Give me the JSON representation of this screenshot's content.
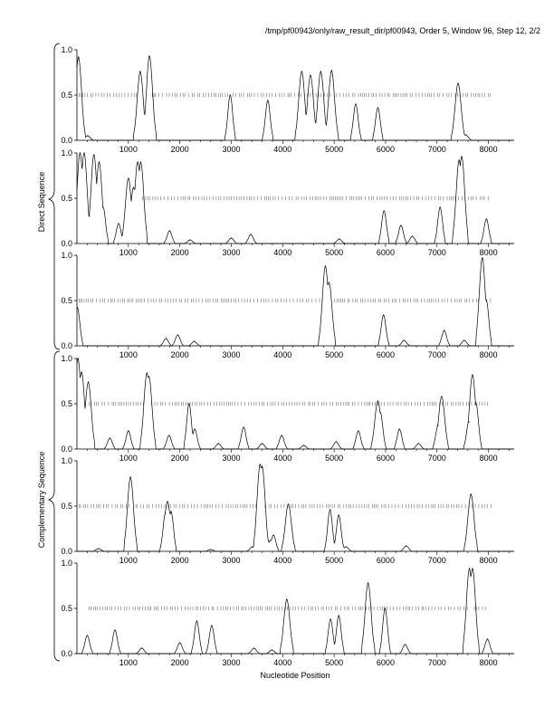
{
  "figure": {
    "title": "/tmp/pf00943/only/raw_result_dir/pf00943, Order 5, Window 96, Step 12, 2/2",
    "xlabel": "Nucleotide Position",
    "group_labels": [
      "Direct Sequence",
      "Complementary Sequence"
    ]
  },
  "colors": {
    "line": "#000000",
    "marker": "#555555",
    "axis": "#000000",
    "background": "#ffffff"
  },
  "chart_data": [
    {
      "type": "line",
      "panel": 1,
      "group": "Direct Sequence",
      "xlim": [
        0,
        8500
      ],
      "ylim": [
        0,
        1
      ],
      "x_ticks": [
        1000,
        2000,
        3000,
        4000,
        5000,
        6000,
        7000,
        8000
      ],
      "y_ticks": [
        "0.0",
        "0.5",
        "1.0"
      ],
      "grid": false,
      "peaks": [
        [
          30,
          0.92
        ],
        [
          210,
          0.05
        ],
        [
          1230,
          0.76
        ],
        [
          1410,
          0.93
        ],
        [
          2980,
          0.5
        ],
        [
          3710,
          0.44
        ],
        [
          4370,
          0.76
        ],
        [
          4540,
          0.72
        ],
        [
          4740,
          0.76
        ],
        [
          4950,
          0.77
        ],
        [
          5420,
          0.4
        ],
        [
          5850,
          0.36
        ],
        [
          7410,
          0.63
        ],
        [
          7560,
          0.06
        ]
      ],
      "markers_at_half": {
        "start": 40,
        "end": 8050,
        "gaps": [
          [
            1200,
            1450
          ],
          [
            2950,
            3000
          ]
        ]
      }
    },
    {
      "type": "line",
      "panel": 2,
      "group": "Direct Sequence",
      "xlim": [
        0,
        8500
      ],
      "ylim": [
        0,
        1
      ],
      "x_ticks": [
        1000,
        2000,
        3000,
        4000,
        5000,
        6000,
        7000,
        8000
      ],
      "y_ticks": [
        "0.0",
        "0.5",
        "1.0"
      ],
      "grid": false,
      "peaks": [
        [
          60,
          1.0
        ],
        [
          140,
          1.0
        ],
        [
          330,
          0.98
        ],
        [
          430,
          0.9
        ],
        [
          510,
          0.4
        ],
        [
          810,
          0.22
        ],
        [
          1000,
          0.72
        ],
        [
          1100,
          0.62
        ],
        [
          1180,
          0.9
        ],
        [
          1240,
          0.9
        ],
        [
          1800,
          0.14
        ],
        [
          2200,
          0.04
        ],
        [
          3000,
          0.06
        ],
        [
          3380,
          0.1
        ],
        [
          5100,
          0.05
        ],
        [
          5970,
          0.36
        ],
        [
          6300,
          0.2
        ],
        [
          6520,
          0.08
        ],
        [
          7060,
          0.4
        ],
        [
          7430,
          0.92
        ],
        [
          7480,
          0.96
        ],
        [
          7960,
          0.27
        ]
      ],
      "markers_at_half": {
        "start": 1270,
        "end": 8050,
        "gaps": []
      }
    },
    {
      "type": "line",
      "panel": 3,
      "group": "Direct Sequence",
      "xlim": [
        0,
        8500
      ],
      "ylim": [
        0,
        1
      ],
      "x_ticks": [
        1000,
        2000,
        3000,
        4000,
        5000,
        6000,
        7000,
        8000
      ],
      "y_ticks": [
        "0.0",
        "0.5",
        "1.0"
      ],
      "grid": false,
      "peaks": [
        [
          10,
          0.42
        ],
        [
          1730,
          0.08
        ],
        [
          1960,
          0.12
        ],
        [
          2280,
          0.05
        ],
        [
          4830,
          0.88
        ],
        [
          4900,
          0.7
        ],
        [
          5960,
          0.34
        ],
        [
          6360,
          0.06
        ],
        [
          7140,
          0.17
        ],
        [
          7530,
          0.06
        ],
        [
          7880,
          0.97
        ],
        [
          7960,
          0.5
        ]
      ],
      "markers_at_half": {
        "start": 40,
        "end": 8050,
        "gaps": [
          [
            4800,
            4950
          ],
          [
            7850,
            7950
          ]
        ]
      }
    },
    {
      "type": "line",
      "panel": 4,
      "group": "Complementary Sequence",
      "xlim": [
        0,
        8500
      ],
      "ylim": [
        0,
        1
      ],
      "x_ticks": [
        1000,
        2000,
        3000,
        4000,
        5000,
        6000,
        7000,
        8000
      ],
      "y_ticks": [
        "0.0",
        "0.5",
        "1.0"
      ],
      "grid": false,
      "peaks": [
        [
          20,
          1.0
        ],
        [
          90,
          0.85
        ],
        [
          220,
          0.74
        ],
        [
          640,
          0.12
        ],
        [
          1000,
          0.2
        ],
        [
          1360,
          0.84
        ],
        [
          1400,
          0.8
        ],
        [
          1790,
          0.15
        ],
        [
          2180,
          0.5
        ],
        [
          2290,
          0.22
        ],
        [
          2750,
          0.06
        ],
        [
          3240,
          0.24
        ],
        [
          3600,
          0.06
        ],
        [
          3980,
          0.15
        ],
        [
          4410,
          0.04
        ],
        [
          5040,
          0.08
        ],
        [
          5470,
          0.2
        ],
        [
          5850,
          0.53
        ],
        [
          5900,
          0.4
        ],
        [
          6270,
          0.22
        ],
        [
          6640,
          0.06
        ],
        [
          7020,
          0.26
        ],
        [
          7090,
          0.58
        ],
        [
          7620,
          0.3
        ],
        [
          7690,
          0.82
        ],
        [
          7760,
          0.5
        ]
      ],
      "markers_at_half": {
        "start": 240,
        "end": 7990,
        "gaps": [
          [
            1330,
            1430
          ]
        ]
      }
    },
    {
      "type": "line",
      "panel": 5,
      "group": "Complementary Sequence",
      "xlim": [
        0,
        8500
      ],
      "ylim": [
        0,
        1
      ],
      "x_ticks": [
        1000,
        2000,
        3000,
        4000,
        5000,
        6000,
        7000,
        8000
      ],
      "y_ticks": [
        "0.0",
        "0.5",
        "1.0"
      ],
      "grid": false,
      "peaks": [
        [
          420,
          0.03
        ],
        [
          1040,
          0.82
        ],
        [
          1720,
          0.42
        ],
        [
          1760,
          0.55
        ],
        [
          1830,
          0.44
        ],
        [
          2600,
          0.02
        ],
        [
          3410,
          0.05
        ],
        [
          3560,
          0.96
        ],
        [
          3600,
          0.94
        ],
        [
          3760,
          0.12
        ],
        [
          3820,
          0.18
        ],
        [
          4110,
          0.52
        ],
        [
          4920,
          0.46
        ],
        [
          5090,
          0.4
        ],
        [
          5230,
          0.05
        ],
        [
          6400,
          0.06
        ],
        [
          7660,
          0.63
        ]
      ],
      "markers_at_half": {
        "start": 40,
        "end": 8050,
        "gaps": [
          [
            1020,
            1080
          ],
          [
            3520,
            3640
          ]
        ]
      }
    },
    {
      "type": "line",
      "panel": 6,
      "group": "Complementary Sequence",
      "xlim": [
        0,
        8500
      ],
      "ylim": [
        0,
        1
      ],
      "x_ticks": [
        1000,
        2000,
        3000,
        4000,
        5000,
        6000,
        7000,
        8000
      ],
      "y_ticks": [
        "0.0",
        "0.5",
        "1.0"
      ],
      "grid": false,
      "peaks": [
        [
          200,
          0.2
        ],
        [
          740,
          0.26
        ],
        [
          1260,
          0.06
        ],
        [
          2000,
          0.12
        ],
        [
          2330,
          0.36
        ],
        [
          2620,
          0.31
        ],
        [
          3440,
          0.06
        ],
        [
          3790,
          0.04
        ],
        [
          4080,
          0.6
        ],
        [
          4930,
          0.38
        ],
        [
          5090,
          0.42
        ],
        [
          5660,
          0.78
        ],
        [
          5990,
          0.5
        ],
        [
          6380,
          0.1
        ],
        [
          7630,
          0.94
        ],
        [
          7690,
          0.94
        ],
        [
          7980,
          0.16
        ]
      ],
      "markers_at_half": {
        "start": 240,
        "end": 7980,
        "gaps": [
          [
            7600,
            7720
          ]
        ]
      }
    }
  ]
}
